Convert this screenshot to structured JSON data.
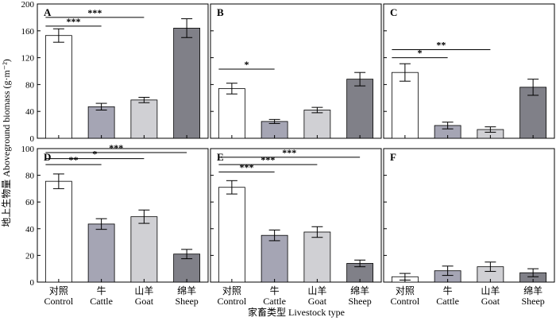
{
  "chart_data": {
    "type": "bar",
    "ylabel": "地上生物量 Aboveground biomass (g·m⁻²)",
    "xlabel": "家畜类型 Livestock type",
    "categories_cn": [
      "对照",
      "牛",
      "山羊",
      "绵羊"
    ],
    "categories": [
      "Control",
      "Cattle",
      "Goat",
      "Sheep"
    ],
    "colors": {
      "Control": "#ffffff",
      "Cattle": "#a5a5b4",
      "Goat": "#d0d0d4",
      "Sheep": "#808088"
    },
    "rows": [
      {
        "ylim": [
          0,
          200
        ],
        "ticks": [
          "0",
          "40",
          "80",
          "120",
          "160",
          "200"
        ]
      },
      {
        "ylim": [
          0,
          100
        ],
        "ticks": [
          "0",
          "20",
          "40",
          "60",
          "80",
          "100"
        ]
      }
    ],
    "panels": [
      {
        "label": "A",
        "row": 0,
        "col": 0,
        "values": [
          153,
          47,
          57,
          164
        ],
        "errors": [
          10,
          5,
          4,
          14
        ],
        "significance": [
          {
            "text": "***",
            "from": 0,
            "to": 1,
            "y": 167
          },
          {
            "text": "***",
            "from": 0,
            "to": 2,
            "y": 180
          }
        ]
      },
      {
        "label": "B",
        "row": 0,
        "col": 1,
        "values": [
          74,
          25,
          42,
          88
        ],
        "errors": [
          8,
          3,
          4,
          10
        ],
        "significance": [
          {
            "text": "*",
            "from": 0,
            "to": 1,
            "y": 103
          }
        ]
      },
      {
        "label": "C",
        "row": 0,
        "col": 2,
        "values": [
          98,
          19,
          13,
          76
        ],
        "errors": [
          13,
          5,
          4,
          12
        ],
        "significance": [
          {
            "text": "*",
            "from": 0,
            "to": 1,
            "y": 120
          },
          {
            "text": "**",
            "from": 0,
            "to": 2,
            "y": 132
          }
        ]
      },
      {
        "label": "D",
        "row": 1,
        "col": 0,
        "values": [
          75.5,
          43.5,
          49,
          21
        ],
        "errors": [
          5.5,
          4,
          5,
          3.5
        ],
        "significance": [
          {
            "text": "**",
            "from": 0,
            "to": 1,
            "y": 88
          },
          {
            "text": "*",
            "from": 0,
            "to": 2,
            "y": 92.5
          },
          {
            "text": "***",
            "from": 0,
            "to": 3,
            "y": 97
          }
        ]
      },
      {
        "label": "E",
        "row": 1,
        "col": 1,
        "values": [
          71,
          35,
          37.5,
          14
        ],
        "errors": [
          5,
          4,
          4,
          2.5
        ],
        "significance": [
          {
            "text": "***",
            "from": 0,
            "to": 1,
            "y": 82.5
          },
          {
            "text": "***",
            "from": 0,
            "to": 2,
            "y": 88
          },
          {
            "text": "***",
            "from": 0,
            "to": 3,
            "y": 93.5
          }
        ]
      },
      {
        "label": "F",
        "row": 1,
        "col": 2,
        "values": [
          4,
          8.5,
          11.5,
          7
        ],
        "errors": [
          2.5,
          3.5,
          3.5,
          3
        ],
        "significance": []
      }
    ]
  }
}
